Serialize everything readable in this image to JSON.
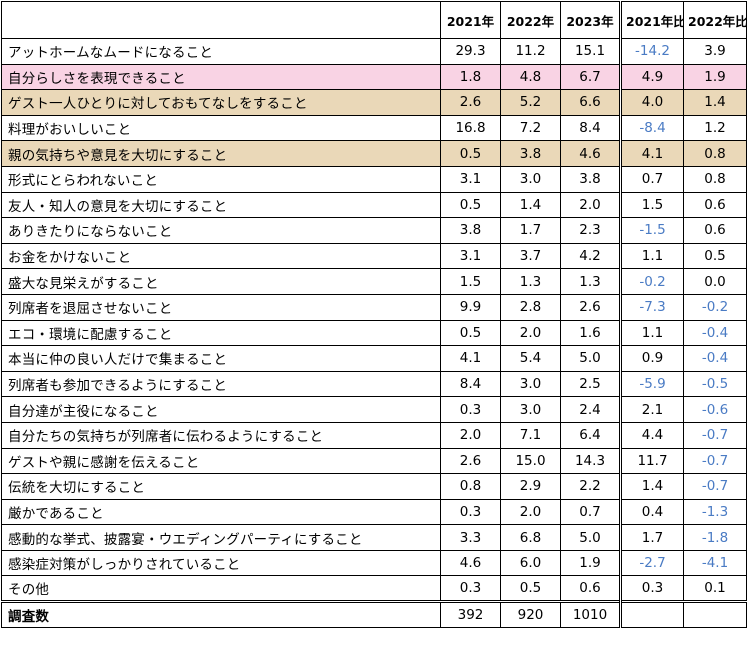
{
  "chart_data": {
    "type": "table",
    "columns": [
      "",
      "2021年",
      "2022年",
      "2023年",
      "2021年比",
      "2022年比"
    ],
    "rows": [
      {
        "label": "アットホームなムードになること",
        "values": [
          "29.3",
          "11.2",
          "15.1",
          "-14.2",
          "3.9"
        ],
        "highlight": ""
      },
      {
        "label": "自分らしさを表現できること",
        "values": [
          "1.8",
          "4.8",
          "6.7",
          "4.9",
          "1.9"
        ],
        "highlight": "pink"
      },
      {
        "label": "ゲスト一人ひとりに対しておもてなしをすること",
        "values": [
          "2.6",
          "5.2",
          "6.6",
          "4.0",
          "1.4"
        ],
        "highlight": "tan"
      },
      {
        "label": "料理がおいしいこと",
        "values": [
          "16.8",
          "7.2",
          "8.4",
          "-8.4",
          "1.2"
        ],
        "highlight": ""
      },
      {
        "label": "親の気持ちや意見を大切にすること",
        "values": [
          "0.5",
          "3.8",
          "4.6",
          "4.1",
          "0.8"
        ],
        "highlight": "tan"
      },
      {
        "label": "形式にとらわれないこと",
        "values": [
          "3.1",
          "3.0",
          "3.8",
          "0.7",
          "0.8"
        ],
        "highlight": ""
      },
      {
        "label": "友人・知人の意見を大切にすること",
        "values": [
          "0.5",
          "1.4",
          "2.0",
          "1.5",
          "0.6"
        ],
        "highlight": ""
      },
      {
        "label": "ありきたりにならないこと",
        "values": [
          "3.8",
          "1.7",
          "2.3",
          "-1.5",
          "0.6"
        ],
        "highlight": ""
      },
      {
        "label": "お金をかけないこと",
        "values": [
          "3.1",
          "3.7",
          "4.2",
          "1.1",
          "0.5"
        ],
        "highlight": ""
      },
      {
        "label": "盛大な見栄えがすること",
        "values": [
          "1.5",
          "1.3",
          "1.3",
          "-0.2",
          "0.0"
        ],
        "highlight": ""
      },
      {
        "label": "列席者を退屈させないこと",
        "values": [
          "9.9",
          "2.8",
          "2.6",
          "-7.3",
          "-0.2"
        ],
        "highlight": ""
      },
      {
        "label": "エコ・環境に配慮すること",
        "values": [
          "0.5",
          "2.0",
          "1.6",
          "1.1",
          "-0.4"
        ],
        "highlight": ""
      },
      {
        "label": "本当に仲の良い人だけで集まること",
        "values": [
          "4.1",
          "5.4",
          "5.0",
          "0.9",
          "-0.4"
        ],
        "highlight": ""
      },
      {
        "label": "列席者も参加できるようにすること",
        "values": [
          "8.4",
          "3.0",
          "2.5",
          "-5.9",
          "-0.5"
        ],
        "highlight": ""
      },
      {
        "label": "自分達が主役になること",
        "values": [
          "0.3",
          "3.0",
          "2.4",
          "2.1",
          "-0.6"
        ],
        "highlight": ""
      },
      {
        "label": "自分たちの気持ちが列席者に伝わるようにすること",
        "values": [
          "2.0",
          "7.1",
          "6.4",
          "4.4",
          "-0.7"
        ],
        "highlight": ""
      },
      {
        "label": "ゲストや親に感謝を伝えること",
        "values": [
          "2.6",
          "15.0",
          "14.3",
          "11.7",
          "-0.7"
        ],
        "highlight": ""
      },
      {
        "label": "伝統を大切にすること",
        "values": [
          "0.8",
          "2.9",
          "2.2",
          "1.4",
          "-0.7"
        ],
        "highlight": ""
      },
      {
        "label": "厳かであること",
        "values": [
          "0.3",
          "2.0",
          "0.7",
          "0.4",
          "-1.3"
        ],
        "highlight": ""
      },
      {
        "label": "感動的な挙式、披露宴・ウエディングパーティにすること",
        "values": [
          "3.3",
          "6.8",
          "5.0",
          "1.7",
          "-1.8"
        ],
        "highlight": ""
      },
      {
        "label": "感染症対策がしっかりされていること",
        "values": [
          "4.6",
          "6.0",
          "1.9",
          "-2.7",
          "-4.1"
        ],
        "highlight": ""
      },
      {
        "label": "その他",
        "values": [
          "0.3",
          "0.5",
          "0.6",
          "0.3",
          "0.1"
        ],
        "highlight": ""
      }
    ],
    "total_row": {
      "label": "調査数",
      "values": [
        "392",
        "920",
        "1010",
        "",
        ""
      ]
    },
    "colors": {
      "negative": "#4a7bc4",
      "pink_highlight": "#f9d3e4",
      "tan_highlight": "#ead8b8"
    }
  }
}
